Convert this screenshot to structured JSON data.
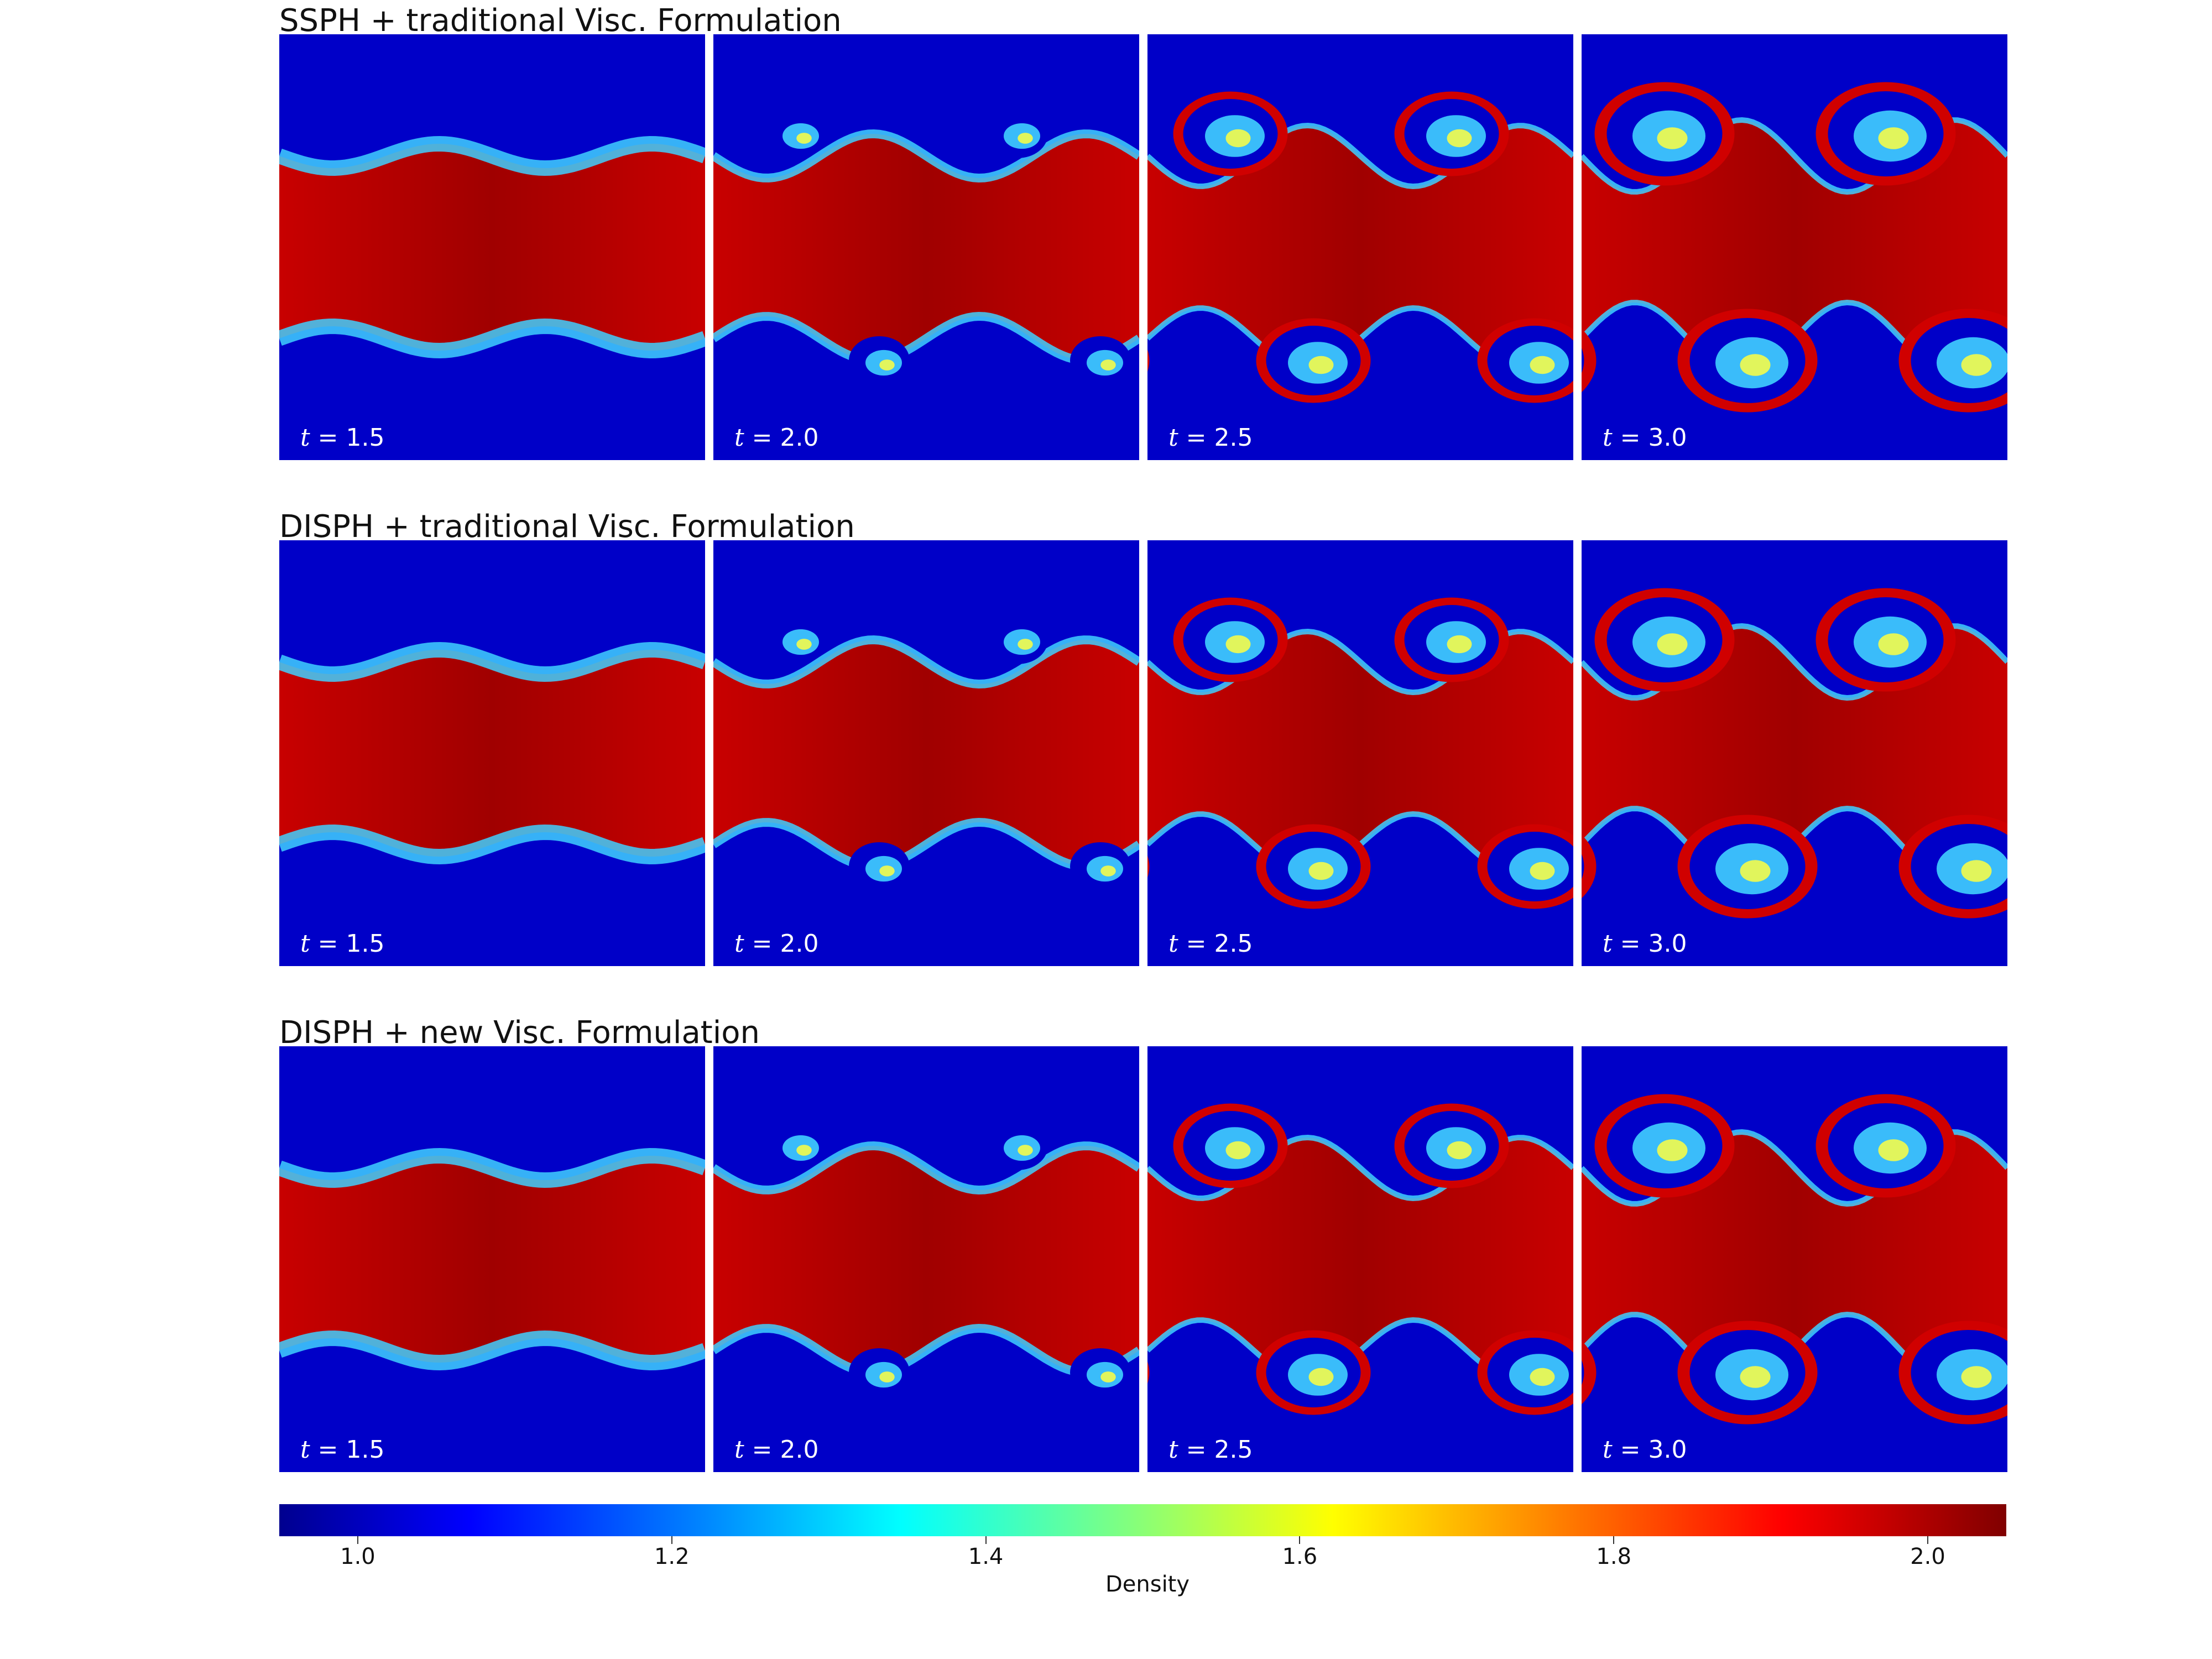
{
  "chart_data": {
    "type": "heatmap",
    "rows": [
      {
        "title": "SSPH + traditional Visc. Formulation",
        "panels": [
          {
            "t_label": "1.5"
          },
          {
            "t_label": "2.0"
          },
          {
            "t_label": "2.5"
          },
          {
            "t_label": "3.0"
          }
        ]
      },
      {
        "title": "DISPH + traditional Visc. Formulation",
        "panels": [
          {
            "t_label": "1.5"
          },
          {
            "t_label": "2.0"
          },
          {
            "t_label": "2.5"
          },
          {
            "t_label": "3.0"
          }
        ]
      },
      {
        "title": "DISPH + new Visc. Formulation",
        "panels": [
          {
            "t_label": "1.5"
          },
          {
            "t_label": "2.0"
          },
          {
            "t_label": "2.5"
          },
          {
            "t_label": "3.0"
          }
        ]
      }
    ],
    "t_symbol": "t",
    "colorbar": {
      "label": "Density",
      "range": [
        0.95,
        2.05
      ],
      "ticks": [
        "1.0",
        "1.2",
        "1.4",
        "1.6",
        "1.8",
        "2.0"
      ],
      "tick_values": [
        1.0,
        1.2,
        1.4,
        1.6,
        1.8,
        2.0
      ],
      "colormap": "jet"
    },
    "colors": {
      "low_density": "#0000c8",
      "high_density": "#c80000",
      "mid_density": "#40d0ff"
    }
  }
}
